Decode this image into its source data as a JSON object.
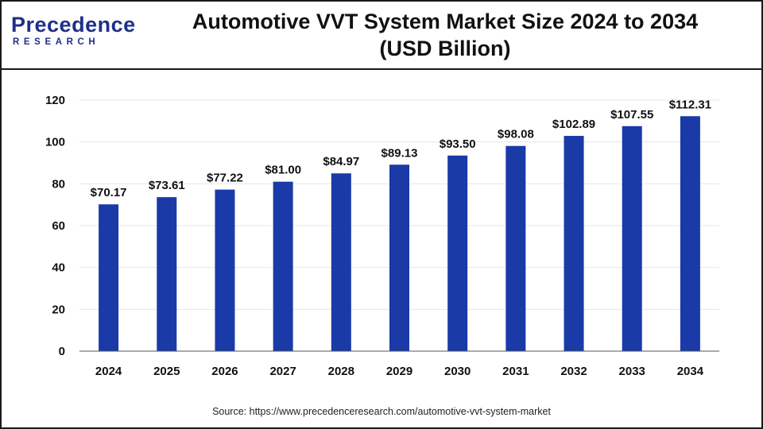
{
  "brand": {
    "name": "recedence",
    "initial": "P",
    "sub": "RESEARCH",
    "color": "#1f2f8a"
  },
  "chart_data": {
    "type": "bar",
    "title_line1": "Automotive VVT System Market Size 2024 to 2034",
    "title_line2": "(USD Billion)",
    "categories": [
      "2024",
      "2025",
      "2026",
      "2027",
      "2028",
      "2029",
      "2030",
      "2031",
      "2032",
      "2033",
      "2034"
    ],
    "values": [
      70.17,
      73.61,
      77.22,
      81.0,
      84.97,
      89.13,
      93.5,
      98.08,
      102.89,
      107.55,
      112.31
    ],
    "value_labels": [
      "$70.17",
      "$73.61",
      "$77.22",
      "$81.00",
      "$84.97",
      "$89.13",
      "$93.50",
      "$98.08",
      "$102.89",
      "$107.55",
      "$112.31"
    ],
    "yticks": [
      0,
      20,
      40,
      60,
      80,
      100,
      120
    ],
    "ylim": [
      0,
      120
    ],
    "grid": true,
    "legend": "none",
    "bar_color": "#1a3aa8"
  },
  "source": "Source: https://www.precedenceresearch.com/automotive-vvt-system-market"
}
